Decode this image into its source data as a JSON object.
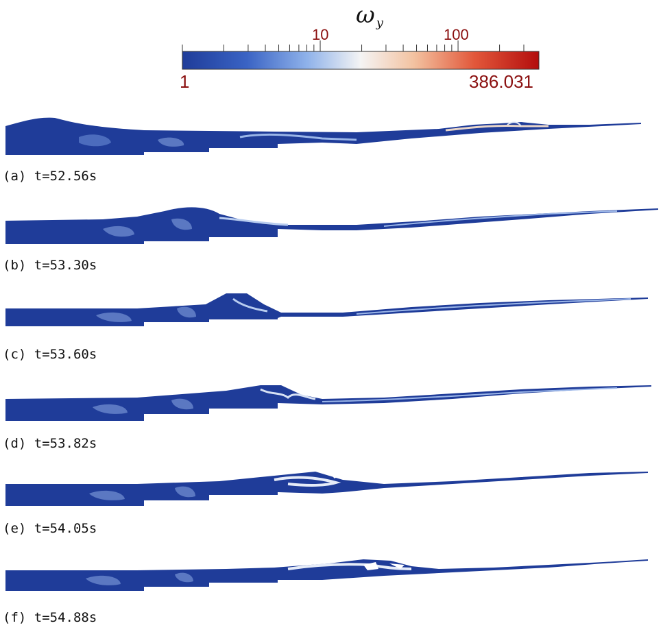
{
  "colorbar": {
    "title": "ω",
    "title_sub": "y",
    "scale": "log",
    "min_label": "1",
    "max_label": "386.031",
    "tick_10": "10",
    "tick_100": "100",
    "colors": {
      "low": "#1f3c99",
      "mid": "#f4f4f4",
      "high": "#b30d0d"
    }
  },
  "panels": [
    {
      "label": "(a) t=52.56s"
    },
    {
      "label": "(b) t=53.30s"
    },
    {
      "label": "(c) t=53.60s"
    },
    {
      "label": "(d) t=53.82s"
    },
    {
      "label": "(e) t=54.05s"
    },
    {
      "label": "(f) t=54.88s"
    }
  ]
}
